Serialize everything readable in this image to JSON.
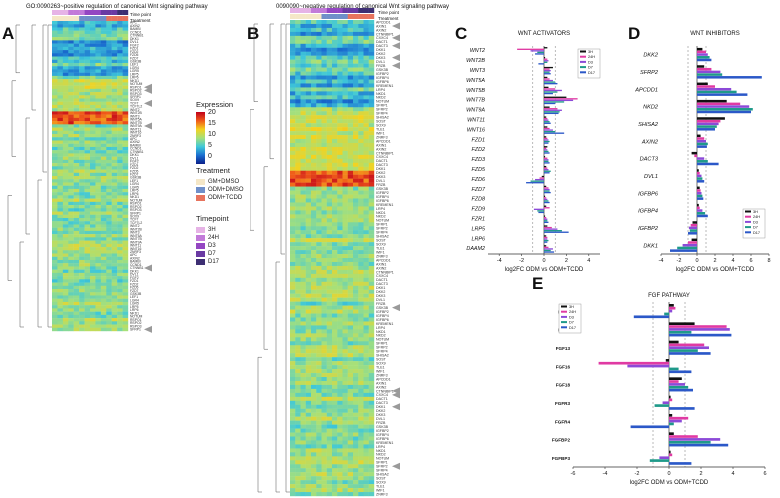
{
  "panels": {
    "a": {
      "letter": "A",
      "title": "GO:0090263~positive regulation of canonical Wnt signaling pathway"
    },
    "b": {
      "letter": "B",
      "title": "0090090~negative regulation of canonical Wnt signaling pathway"
    },
    "c": {
      "letter": "C"
    },
    "d": {
      "letter": "D"
    },
    "e": {
      "letter": "E"
    }
  },
  "track_labels": {
    "time_point": "Time point",
    "treatment": "Treatment"
  },
  "legend": {
    "expression_title": "Expression",
    "expression_ticks": [
      "20",
      "15",
      "10",
      "5",
      "0"
    ],
    "treatment_title": "Treatment",
    "treatment_items": [
      {
        "label": "GM+DMSO",
        "color": "#f5e7c7"
      },
      {
        "label": "ODM+DMSO",
        "color": "#6f8fc9"
      },
      {
        "label": "ODM+TCDD",
        "color": "#e7735d"
      }
    ],
    "timepoint_title": "Timepoint",
    "timepoint_items": [
      {
        "label": "3H",
        "color": "#e6b3e6"
      },
      {
        "label": "24H",
        "color": "#c27ad9"
      },
      {
        "label": "D3",
        "color": "#9446c2"
      },
      {
        "label": "D7",
        "color": "#6a3aa3"
      },
      {
        "label": "D17",
        "color": "#3d2f73"
      }
    ]
  },
  "series_colors": {
    "3H": "#111111",
    "24H": "#e03aa3",
    "D3": "#8c4ad8",
    "D7": "#1f9a8a",
    "D17": "#2b58c8"
  },
  "chart_data": [
    {
      "panel": "C",
      "type": "bar",
      "orientation": "horizontal",
      "title": "WNT ACTIVATORS",
      "xlabel": "log2FC ODM vs ODM+TCDD",
      "xlim": [
        -5,
        5
      ],
      "xticks": [
        "-4",
        "-2",
        "0",
        "2",
        "4"
      ],
      "dashed_lines": [
        -1,
        1
      ],
      "legend_position": "top-right",
      "categories": [
        "WNT2",
        "WNT2B",
        "WNT3",
        "WNT5A",
        "WNT5B",
        "WNT7B",
        "WNT9A",
        "WNT11",
        "WNT16",
        "FZD1",
        "FZD2",
        "FZD3",
        "FZD5",
        "FZD6",
        "FZD7",
        "FZD8",
        "FZD9",
        "FZR1",
        "LRP5",
        "LRP6",
        "DAAM2"
      ],
      "series": [
        {
          "name": "3H",
          "values": [
            0.3,
            0.1,
            0.8,
            0.3,
            0.4,
            2.0,
            0.5,
            0.2,
            0.3,
            0.2,
            0.3,
            0.1,
            0.2,
            -0.2,
            0.2,
            0.1,
            0.2,
            0.1,
            0.3,
            0.2,
            0.2
          ]
        },
        {
          "name": "24H",
          "values": [
            -2.4,
            0.3,
            0.5,
            0.5,
            1.0,
            3.0,
            1.2,
            0.3,
            0.5,
            0.3,
            0.2,
            0.3,
            0.3,
            -0.4,
            0.4,
            0.2,
            0.5,
            0.2,
            0.7,
            0.3,
            0.4
          ]
        },
        {
          "name": "D3",
          "values": [
            -1.2,
            0.4,
            0.6,
            0.8,
            1.6,
            2.6,
            1.6,
            0.4,
            0.8,
            0.4,
            0.3,
            0.4,
            0.4,
            -0.8,
            0.5,
            0.3,
            -0.9,
            0.3,
            1.2,
            0.3,
            0.8
          ]
        },
        {
          "name": "D7",
          "values": [
            -0.6,
            0.3,
            0.5,
            1.0,
            1.2,
            1.8,
            1.4,
            0.5,
            1.0,
            0.5,
            0.4,
            0.4,
            0.6,
            -1.2,
            0.5,
            0.4,
            -0.6,
            0.3,
            1.6,
            0.4,
            0.6
          ]
        },
        {
          "name": "D17",
          "values": [
            -0.8,
            -0.5,
            0.6,
            1.2,
            0.8,
            1.0,
            1.3,
            0.6,
            1.8,
            0.4,
            0.5,
            0.5,
            0.5,
            -1.6,
            0.6,
            0.5,
            -0.5,
            0.4,
            2.2,
            0.3,
            0.9
          ]
        }
      ]
    },
    {
      "panel": "D",
      "type": "bar",
      "orientation": "horizontal",
      "title": "WNT INHIBITORS",
      "xlabel": "log2FC ODM vs ODM+TCDD",
      "xlim": [
        -4,
        8
      ],
      "xticks": [
        "-4",
        "-2",
        "0",
        "2",
        "4",
        "6",
        "8"
      ],
      "dashed_lines": [
        -1,
        1
      ],
      "legend_position": "bottom-right",
      "categories": [
        "DKK2",
        "SFRP2",
        "APCDD1",
        "NKD2",
        "SHISA2",
        "AXIN2",
        "DACT3",
        "DVL1",
        "IGFBP6",
        "IGFBP4",
        "IGFBP2",
        "DKK1"
      ],
      "series": [
        {
          "name": "3H",
          "values": [
            0.6,
            0.8,
            1.2,
            3.3,
            3.1,
            0.4,
            -0.6,
            0.2,
            0.3,
            0.2,
            -0.5,
            -0.6
          ]
        },
        {
          "name": "24H",
          "values": [
            1.0,
            1.6,
            2.0,
            4.8,
            2.6,
            0.8,
            -0.3,
            0.3,
            0.4,
            0.3,
            -0.7,
            -1.0
          ]
        },
        {
          "name": "D3",
          "values": [
            1.2,
            2.6,
            3.8,
            5.8,
            2.4,
            1.0,
            0.8,
            0.5,
            0.5,
            0.6,
            -0.9,
            -1.6
          ]
        },
        {
          "name": "D7",
          "values": [
            1.4,
            2.8,
            4.4,
            6.2,
            2.2,
            1.2,
            1.2,
            0.6,
            0.6,
            0.9,
            -0.8,
            -2.2
          ]
        },
        {
          "name": "D17",
          "values": [
            1.6,
            7.2,
            5.6,
            6.0,
            2.0,
            1.1,
            2.4,
            0.8,
            0.7,
            1.2,
            -1.0,
            -3.0
          ]
        }
      ]
    },
    {
      "panel": "E",
      "type": "bar",
      "orientation": "horizontal",
      "title": "FGF PATHWAY",
      "xlabel": "log2FC ODM vs ODM+TCDD",
      "xlim": [
        -6,
        6
      ],
      "xticks": [
        "-6",
        "-4",
        "-2",
        "0",
        "2",
        "4",
        "6"
      ],
      "dashed_lines": [
        -1,
        1
      ],
      "legend_position": "top-left",
      "categories": [
        "FGF2",
        "FGF9",
        "FGF13",
        "FGF16",
        "FGF18",
        "FGFR3",
        "FGFR4",
        "FGFBP2",
        "FGFBP3"
      ],
      "series": [
        {
          "name": "3H",
          "values": [
            0.3,
            1.6,
            0.6,
            -0.2,
            0.8,
            0.1,
            0.2,
            0.3,
            0.1
          ]
        },
        {
          "name": "24H",
          "values": [
            0.4,
            3.6,
            2.2,
            -4.4,
            0.6,
            0.2,
            1.2,
            1.8,
            0.2
          ]
        },
        {
          "name": "D3",
          "values": [
            0.2,
            3.8,
            2.5,
            -2.6,
            1.0,
            -0.4,
            0.8,
            3.2,
            -0.6
          ]
        },
        {
          "name": "D7",
          "values": [
            -0.3,
            1.4,
            1.8,
            0.6,
            1.2,
            -0.9,
            0.3,
            2.6,
            -1.2
          ]
        },
        {
          "name": "D17",
          "values": [
            -2.2,
            3.9,
            2.6,
            1.4,
            1.5,
            1.6,
            -2.4,
            3.7,
            1.4
          ]
        }
      ]
    }
  ],
  "heatmap_a": {
    "rows": 96,
    "cols": 14,
    "arrow_rows": [
      20,
      21,
      25,
      32,
      76,
      95
    ],
    "warm_rows": [
      28,
      29,
      30,
      31
    ],
    "gene_labels": [
      "APC",
      "AXIN2",
      "BAMBI",
      "CCND1",
      "CTNNB1",
      "DKK1",
      "DVL1",
      "FGF2",
      "FZD1",
      "FZD2",
      "FZD5",
      "FZD7",
      "GSK3B",
      "LEF1",
      "LGR4",
      "LGR5",
      "LRP5",
      "LRP6",
      "NKD1",
      "NOTUM",
      "RSPO1",
      "RSPO2",
      "RSPO3",
      "SFRP1",
      "SOX9",
      "TCF7",
      "TCF7L2",
      "WNT2",
      "WNT2B",
      "WNT3",
      "WNT5A",
      "WNT7B",
      "WNT9A",
      "WNT11",
      "WNT16",
      "ZNRF3"
    ]
  },
  "heatmap_b": {
    "rows": 120,
    "cols": 16,
    "arrow_rows": [
      1,
      4,
      6,
      9,
      11,
      72,
      93,
      94,
      97,
      112
    ],
    "warm_rows": [
      38,
      39,
      40,
      41
    ],
    "gene_labels": [
      "APCDD1",
      "AXIN1",
      "AXIN2",
      "CTNNBIP1",
      "CXXC4",
      "DACT1",
      "DACT3",
      "DKK1",
      "DKK2",
      "DKK3",
      "DVL1",
      "FRZB",
      "GSK3B",
      "IGFBP2",
      "IGFBP4",
      "IGFBP6",
      "KREMEN1",
      "LRP4",
      "NKD1",
      "NKD2",
      "NOTUM",
      "SFRP1",
      "SFRP2",
      "SFRP4",
      "SHISA2",
      "SOST",
      "SOX9",
      "TLE1",
      "WIF1",
      "ZNRF3"
    ]
  }
}
